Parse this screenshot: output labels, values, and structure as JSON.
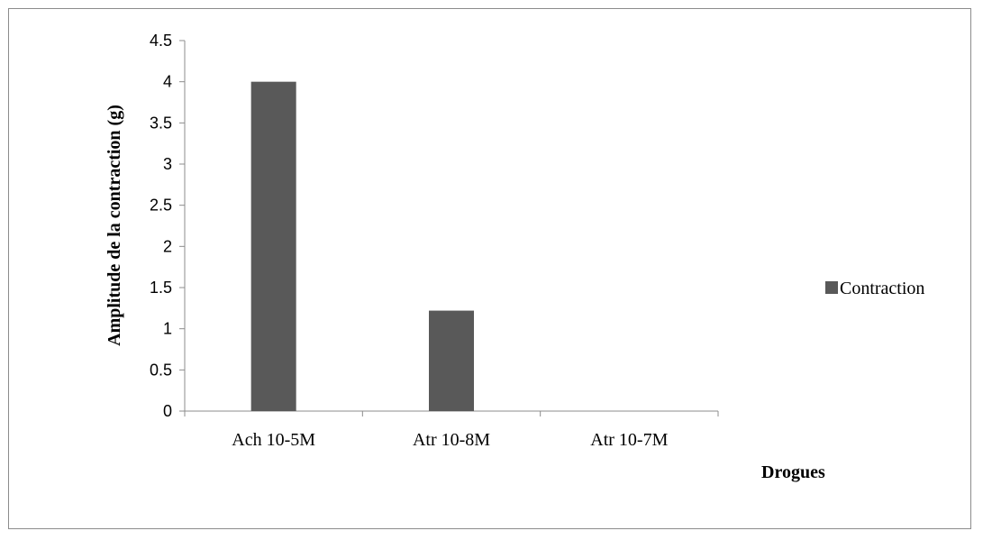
{
  "chart_data": {
    "type": "bar",
    "categories": [
      "Ach 10-5M",
      "Atr 10-8M",
      "Atr 10-7M"
    ],
    "series": [
      {
        "name": "Contraction",
        "values": [
          4.0,
          1.22,
          0
        ]
      }
    ],
    "ylim": [
      0,
      4.5
    ],
    "yticks": [
      "0",
      "0.5",
      "1",
      "1.5",
      "2",
      "2.5",
      "3",
      "3.5",
      "4",
      "4.5"
    ],
    "ylabel": "Amplitude de la contraction (g)",
    "xlabel": "Drogues",
    "legend_position": "right",
    "grid": false,
    "bar_color": "#595959"
  }
}
